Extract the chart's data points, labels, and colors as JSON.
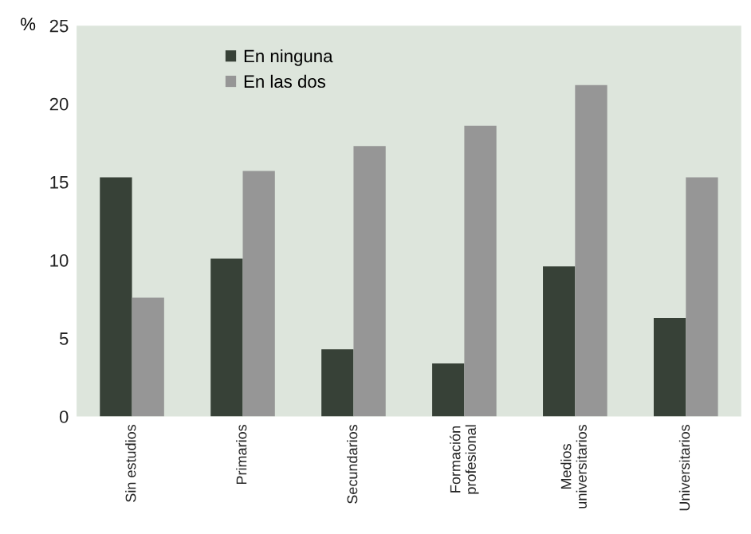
{
  "chart_data": {
    "type": "bar",
    "ylabel": "%",
    "categories": [
      "Sin estudios",
      "Primarios",
      "Secundarios",
      "Formación\nprofesional",
      "Medios\nuniversitarios",
      "Universitarios"
    ],
    "series": [
      {
        "name": "En ninguna",
        "color": "#374137",
        "values": [
          15.3,
          10.1,
          4.3,
          3.4,
          9.6,
          6.3
        ]
      },
      {
        "name": "En las dos",
        "color": "#969696",
        "values": [
          7.6,
          15.7,
          17.3,
          18.6,
          21.2,
          15.3
        ]
      }
    ],
    "ylim": [
      0,
      25
    ],
    "yticks": [
      0,
      5,
      10,
      15,
      20,
      25
    ],
    "grid": false,
    "legend": "top left"
  }
}
